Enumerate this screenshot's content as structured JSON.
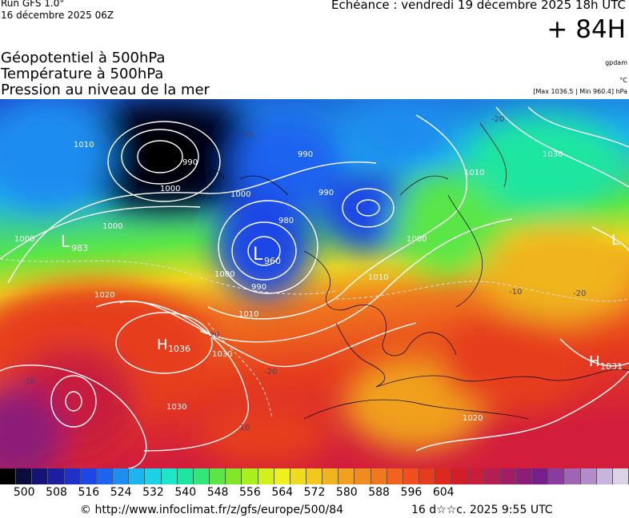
{
  "header": {
    "run": "Run GFS 1.0°",
    "run_date": "16 décembre 2025 06Z",
    "echeance": "Echéance : vendredi 19 décembre 2025 18h UTC",
    "hour": "+ 84H"
  },
  "titles": {
    "line1": "Géopotentiel à 500hPa",
    "line2": "Température à 500hPa",
    "line3": "Pression au niveau de la mer"
  },
  "units": {
    "geopotential": "gpdam",
    "temperature": "°C",
    "pressure_range": "[Max 1036.5 | Min 960.4] hPa"
  },
  "pressure_centers": [
    {
      "type": "L",
      "value": "983"
    },
    {
      "type": "L",
      "value": "960"
    },
    {
      "type": "H",
      "value": "1036"
    },
    {
      "type": "H",
      "value": "1031"
    },
    {
      "type": "L",
      "value": ""
    }
  ],
  "isobar_labels": [
    "1010",
    "990",
    "1000",
    "1000",
    "1000",
    "1000",
    "990",
    "980",
    "1000",
    "990",
    "1010",
    "1010",
    "1020",
    "1030",
    "1030",
    "1020",
    "1010",
    "1030",
    "1000",
    "990"
  ],
  "isotherm_labels": [
    "-30",
    "-20",
    "-10",
    "-20",
    "-20",
    "-10",
    "-10",
    "-20"
  ],
  "color_scale": {
    "unit": "gpdam",
    "min": 500,
    "max": 604,
    "step": 4,
    "tick_labels": [
      "500",
      "508",
      "516",
      "524",
      "532",
      "540",
      "548",
      "556",
      "564",
      "572",
      "580",
      "588",
      "596",
      "604"
    ],
    "colors": [
      "#000000",
      "#0c0c3c",
      "#141478",
      "#1e1ea0",
      "#1e32c8",
      "#1e46e6",
      "#1e64f0",
      "#1e8cf0",
      "#1eb4f0",
      "#1ed2e6",
      "#1ee6c8",
      "#1ee6a0",
      "#32e678",
      "#5ae646",
      "#82e628",
      "#aaf01e",
      "#d2f01e",
      "#f0f01e",
      "#f0dc1e",
      "#f0c81e",
      "#f0b41e",
      "#f0a01e",
      "#f08c1e",
      "#f0781e",
      "#f0641e",
      "#f0501e",
      "#e63c1e",
      "#dc281e",
      "#d21e28",
      "#c81e3c",
      "#b41e50",
      "#a01e64",
      "#8c1e78",
      "#781e8c",
      "#8c3ca0",
      "#a064b4",
      "#b48cc8",
      "#c8b4dc",
      "#dcd2e6"
    ]
  },
  "footer": {
    "url": "© http://www.infoclimat.fr/z/gfs/europe/500/84",
    "date": "16 d☆☆c. 2025  9:55 UTC"
  }
}
